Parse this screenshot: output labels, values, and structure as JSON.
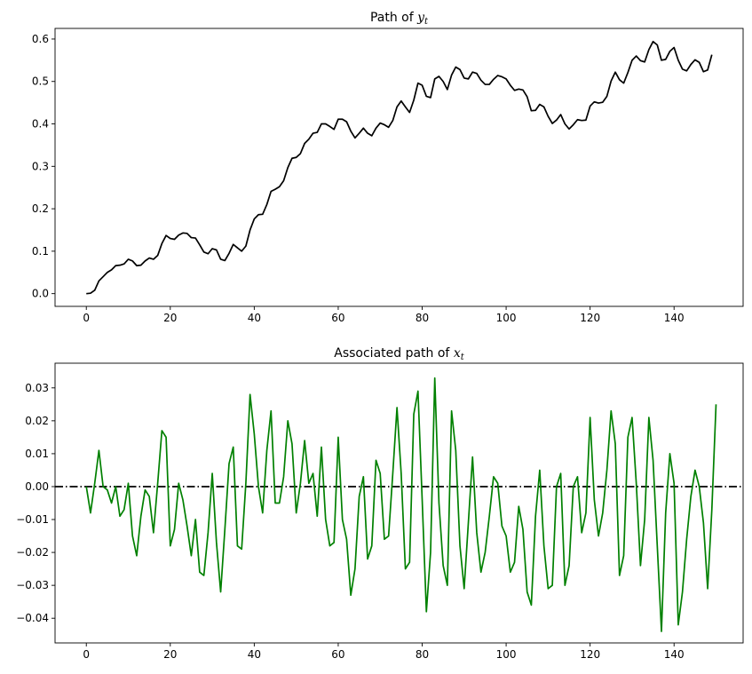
{
  "chart_data": [
    {
      "type": "line",
      "title_prefix": "Path of ",
      "title_var": "y",
      "title_sub": "t",
      "xlim": [
        -7.45,
        156.45
      ],
      "ylim": [
        -0.03,
        0.625
      ],
      "xticks": [
        0,
        20,
        40,
        60,
        80,
        100,
        120,
        140
      ],
      "yticks": [
        0.0,
        0.1,
        0.2,
        0.3,
        0.4,
        0.5,
        0.6
      ],
      "ytick_labels": [
        "0.0",
        "0.1",
        "0.2",
        "0.3",
        "0.4",
        "0.5",
        "0.6"
      ],
      "color": "#000000",
      "y": [
        0.0,
        0.001,
        0.008,
        0.03,
        0.04,
        0.05,
        0.056,
        0.066,
        0.067,
        0.07,
        0.081,
        0.077,
        0.066,
        0.067,
        0.077,
        0.084,
        0.081,
        0.09,
        0.118,
        0.137,
        0.13,
        0.128,
        0.138,
        0.143,
        0.142,
        0.132,
        0.131,
        0.115,
        0.098,
        0.094,
        0.106,
        0.103,
        0.081,
        0.078,
        0.095,
        0.116,
        0.108,
        0.1,
        0.112,
        0.15,
        0.176,
        0.186,
        0.187,
        0.21,
        0.241,
        0.246,
        0.252,
        0.266,
        0.297,
        0.319,
        0.321,
        0.33,
        0.354,
        0.364,
        0.378,
        0.38,
        0.4,
        0.4,
        0.394,
        0.387,
        0.411,
        0.411,
        0.405,
        0.383,
        0.367,
        0.378,
        0.39,
        0.378,
        0.372,
        0.39,
        0.402,
        0.398,
        0.392,
        0.408,
        0.44,
        0.454,
        0.44,
        0.427,
        0.456,
        0.496,
        0.491,
        0.465,
        0.462,
        0.506,
        0.512,
        0.5,
        0.481,
        0.515,
        0.534,
        0.528,
        0.508,
        0.506,
        0.522,
        0.519,
        0.503,
        0.493,
        0.493,
        0.505,
        0.514,
        0.511,
        0.506,
        0.491,
        0.479,
        0.482,
        0.48,
        0.464,
        0.431,
        0.432,
        0.446,
        0.44,
        0.418,
        0.401,
        0.409,
        0.422,
        0.4,
        0.388,
        0.398,
        0.41,
        0.408,
        0.409,
        0.442,
        0.452,
        0.449,
        0.451,
        0.465,
        0.501,
        0.522,
        0.504,
        0.496,
        0.521,
        0.55,
        0.56,
        0.549,
        0.546,
        0.575,
        0.594,
        0.586,
        0.55,
        0.552,
        0.571,
        0.58,
        0.55,
        0.529,
        0.525,
        0.54,
        0.551,
        0.545,
        0.523,
        0.527,
        0.563
      ]
    },
    {
      "type": "line",
      "title_prefix": "Associated path of ",
      "title_var": "x",
      "title_sub": "t",
      "xlim": [
        -7.45,
        156.45
      ],
      "ylim": [
        -0.0475,
        0.0375
      ],
      "xticks": [
        0,
        20,
        40,
        60,
        80,
        100,
        120,
        140
      ],
      "yticks": [
        -0.04,
        -0.03,
        -0.02,
        -0.01,
        0.0,
        0.01,
        0.02,
        0.03
      ],
      "ytick_labels": [
        "−0.04",
        "−0.03",
        "−0.02",
        "−0.01",
        "0.00",
        "0.01",
        "0.02",
        "0.03"
      ],
      "color": "#008000",
      "hline": {
        "y": 0,
        "style": "dashdot",
        "color": "#000000"
      },
      "y": [
        0.0,
        -0.008,
        0.001,
        0.011,
        0.0,
        -0.001,
        -0.005,
        0.0,
        -0.009,
        -0.007,
        0.001,
        -0.015,
        -0.021,
        -0.009,
        -0.001,
        -0.003,
        -0.014,
        0.001,
        0.017,
        0.015,
        -0.018,
        -0.013,
        0.001,
        -0.004,
        -0.012,
        -0.021,
        -0.01,
        -0.026,
        -0.027,
        -0.014,
        0.004,
        -0.017,
        -0.032,
        -0.013,
        0.007,
        0.012,
        -0.018,
        -0.019,
        0.001,
        0.028,
        0.016,
        0.0,
        -0.008,
        0.011,
        0.023,
        -0.005,
        -0.005,
        0.003,
        0.02,
        0.013,
        -0.008,
        0.001,
        0.014,
        0.001,
        0.004,
        -0.009,
        0.012,
        -0.01,
        -0.018,
        -0.017,
        0.015,
        -0.01,
        -0.016,
        -0.033,
        -0.025,
        -0.003,
        0.003,
        -0.022,
        -0.018,
        0.008,
        0.004,
        -0.016,
        -0.015,
        0.004,
        0.024,
        0.004,
        -0.025,
        -0.023,
        0.022,
        0.029,
        -0.004,
        -0.038,
        -0.02,
        0.033,
        -0.005,
        -0.024,
        -0.03,
        0.023,
        0.011,
        -0.018,
        -0.031,
        -0.011,
        0.009,
        -0.014,
        -0.026,
        -0.02,
        -0.009,
        0.003,
        0.001,
        -0.012,
        -0.015,
        -0.026,
        -0.023,
        -0.006,
        -0.013,
        -0.032,
        -0.036,
        -0.009,
        0.005,
        -0.018,
        -0.031,
        -0.03,
        0.0,
        0.004,
        -0.03,
        -0.024,
        0.0,
        0.003,
        -0.014,
        -0.008,
        0.021,
        -0.004,
        -0.015,
        -0.008,
        0.005,
        0.023,
        0.013,
        -0.027,
        -0.021,
        0.015,
        0.021,
        0.001,
        -0.024,
        -0.01,
        0.021,
        0.008,
        -0.018,
        -0.044,
        -0.008,
        0.01,
        0.001,
        -0.042,
        -0.032,
        -0.016,
        -0.003,
        0.005,
        0.0,
        -0.011,
        -0.031,
        -0.007,
        0.025
      ]
    }
  ]
}
